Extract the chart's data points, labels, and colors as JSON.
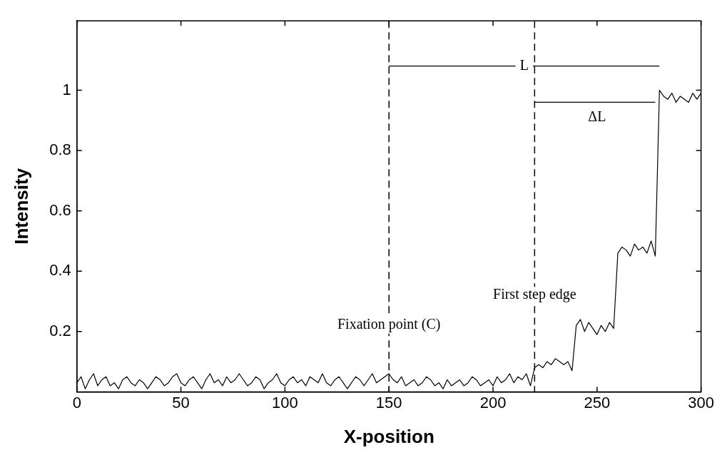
{
  "chart_data": {
    "type": "line",
    "xlabel": "X-position",
    "ylabel": "Intensity",
    "xlim": [
      0,
      300
    ],
    "xticks": [
      0,
      50,
      100,
      150,
      200,
      250,
      300
    ],
    "ylim": [
      0,
      1.23
    ],
    "yticks": [
      0.2,
      0.4,
      0.6,
      0.8,
      1
    ],
    "grid": false,
    "legend": false,
    "marker": "none",
    "ref_lines": [
      {
        "axis": "x",
        "value": 150,
        "line_style": "dashed",
        "color": "#000000",
        "label": "Fixation point (C)"
      },
      {
        "axis": "x",
        "value": 220,
        "line_style": "dashed",
        "color": "#000000",
        "label": "First step edge"
      }
    ],
    "annotations": [
      {
        "text": "L",
        "x": 215,
        "y": 1.08
      },
      {
        "text": "ΔL",
        "x": 250,
        "y": 0.91
      }
    ],
    "series": [
      {
        "color": "#000000",
        "line_style": "solid",
        "x": [
          0,
          2,
          4,
          6,
          8,
          10,
          12,
          14,
          16,
          18,
          20,
          22,
          24,
          26,
          28,
          30,
          32,
          34,
          36,
          38,
          40,
          42,
          44,
          46,
          48,
          50,
          52,
          54,
          56,
          58,
          60,
          62,
          64,
          66,
          68,
          70,
          72,
          74,
          76,
          78,
          80,
          82,
          84,
          86,
          88,
          90,
          92,
          94,
          96,
          98,
          100,
          102,
          104,
          106,
          108,
          110,
          112,
          114,
          116,
          118,
          120,
          122,
          124,
          126,
          128,
          130,
          132,
          134,
          136,
          138,
          140,
          142,
          144,
          146,
          148,
          150,
          152,
          154,
          156,
          158,
          160,
          162,
          164,
          166,
          168,
          170,
          172,
          174,
          176,
          178,
          180,
          182,
          184,
          186,
          188,
          190,
          192,
          194,
          196,
          198,
          200,
          202,
          204,
          206,
          208,
          210,
          212,
          214,
          216,
          218,
          220,
          222,
          224,
          226,
          228,
          230,
          232,
          234,
          236,
          238,
          240,
          242,
          244,
          246,
          248,
          250,
          252,
          254,
          256,
          258,
          260,
          262,
          264,
          266,
          268,
          270,
          272,
          274,
          276,
          278,
          280,
          282,
          284,
          286,
          288,
          290,
          292,
          294,
          296,
          298,
          300
        ],
        "values": [
          0.03,
          0.05,
          0.01,
          0.04,
          0.06,
          0.02,
          0.04,
          0.05,
          0.02,
          0.03,
          0.01,
          0.04,
          0.05,
          0.03,
          0.02,
          0.04,
          0.03,
          0.01,
          0.03,
          0.05,
          0.04,
          0.02,
          0.03,
          0.05,
          0.06,
          0.03,
          0.02,
          0.04,
          0.05,
          0.03,
          0.01,
          0.04,
          0.06,
          0.03,
          0.04,
          0.02,
          0.05,
          0.03,
          0.04,
          0.06,
          0.04,
          0.02,
          0.03,
          0.05,
          0.04,
          0.01,
          0.03,
          0.04,
          0.06,
          0.03,
          0.02,
          0.04,
          0.05,
          0.03,
          0.04,
          0.02,
          0.05,
          0.04,
          0.03,
          0.06,
          0.03,
          0.02,
          0.04,
          0.05,
          0.03,
          0.01,
          0.03,
          0.05,
          0.04,
          0.02,
          0.04,
          0.06,
          0.03,
          0.04,
          0.05,
          0.06,
          0.04,
          0.03,
          0.05,
          0.02,
          0.03,
          0.04,
          0.02,
          0.03,
          0.05,
          0.04,
          0.02,
          0.03,
          0.01,
          0.04,
          0.02,
          0.03,
          0.04,
          0.02,
          0.03,
          0.05,
          0.04,
          0.02,
          0.03,
          0.04,
          0.02,
          0.05,
          0.03,
          0.04,
          0.06,
          0.03,
          0.05,
          0.04,
          0.06,
          0.02,
          0.08,
          0.09,
          0.08,
          0.1,
          0.09,
          0.11,
          0.1,
          0.09,
          0.1,
          0.07,
          0.22,
          0.24,
          0.2,
          0.23,
          0.21,
          0.19,
          0.22,
          0.2,
          0.23,
          0.21,
          0.46,
          0.48,
          0.47,
          0.45,
          0.49,
          0.47,
          0.48,
          0.46,
          0.5,
          0.45,
          1.0,
          0.98,
          0.97,
          0.99,
          0.96,
          0.98,
          0.97,
          0.96,
          0.99,
          0.97,
          0.99
        ]
      },
      {
        "color": "#000000",
        "line_style": "solid",
        "x": [
          150,
          280
        ],
        "values": [
          1.08,
          1.08
        ]
      },
      {
        "color": "#000000",
        "line_style": "solid",
        "x": [
          220,
          278
        ],
        "values": [
          0.96,
          0.96
        ]
      }
    ]
  }
}
